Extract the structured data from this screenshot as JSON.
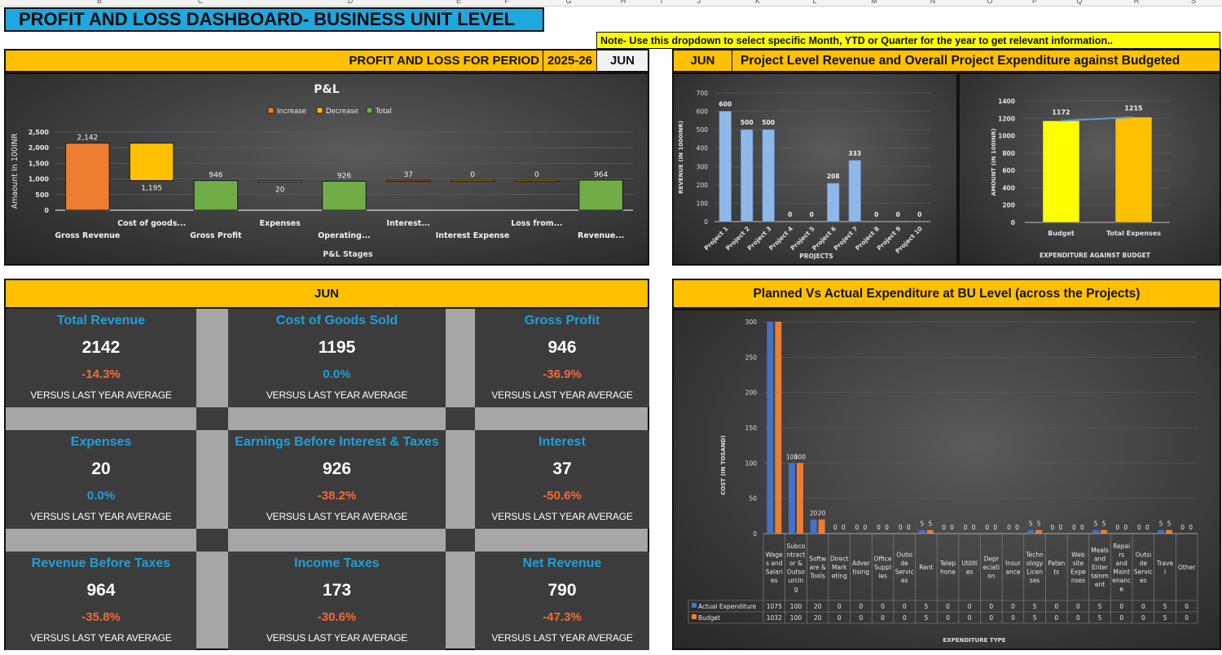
{
  "sheet_columns": [
    "B",
    "C",
    "D",
    "E",
    "F",
    "G",
    "H",
    "I",
    "J",
    "K",
    "L",
    "M",
    "N",
    "O",
    "P",
    "Q",
    "R",
    "S"
  ],
  "title": "PROFIT AND LOSS DASHBOARD- BUSINESS UNIT LEVEL",
  "note": "Note- Use this dropdown to select specific Month, YTD or Quarter for the year to get relevant information..",
  "pl_header": {
    "label": "PROFIT AND LOSS FOR PERIOD",
    "year": "2025-26",
    "month": "JUN"
  },
  "project_header": {
    "month": "JUN",
    "label": "Project Level Revenue and  Overall Project Expenditure against Budgeted"
  },
  "kpi_header": "JUN",
  "colors": {
    "increase": "#ed7d31",
    "decrease": "#ffc000",
    "total": "#70ad47",
    "negative_pct": "#f26b3a",
    "neutral_pct": "#1ea0d8",
    "kpi_title": "#1ea0d8",
    "blue_series": "#4472c4",
    "orange_series": "#ed7d31"
  },
  "kpis": [
    {
      "title": "Total Revenue",
      "value": "2142",
      "pct": "-14.3%",
      "trend": "negative",
      "sub": "VERSUS LAST YEAR AVERAGE"
    },
    {
      "title": "Cost of Goods Sold",
      "value": "1195",
      "pct": "0.0%",
      "trend": "neutral",
      "sub": "VERSUS LAST YEAR AVERAGE"
    },
    {
      "title": "Gross Profit",
      "value": "946",
      "pct": "-36.9%",
      "trend": "negative",
      "sub": "VERSUS LAST YEAR AVERAGE"
    },
    {
      "title": "Expenses",
      "value": "20",
      "pct": "0.0%",
      "trend": "neutral",
      "sub": "VERSUS LAST YEAR AVERAGE"
    },
    {
      "title": "Earnings Before Interest & Taxes",
      "value": "926",
      "pct": "-38.2%",
      "trend": "negative",
      "sub": "VERSUS LAST YEAR AVERAGE"
    },
    {
      "title": "Interest",
      "value": "37",
      "pct": "-50.6%",
      "trend": "negative",
      "sub": "VERSUS LAST YEAR AVERAGE"
    },
    {
      "title": "Revenue Before Taxes",
      "value": "964",
      "pct": "-35.8%",
      "trend": "negative",
      "sub": "VERSUS LAST YEAR AVERAGE"
    },
    {
      "title": "Income Taxes",
      "value": "173",
      "pct": "-30.6%",
      "trend": "negative",
      "sub": "VERSUS LAST YEAR AVERAGE"
    },
    {
      "title": "Net Revenue",
      "value": "790",
      "pct": "-47.3%",
      "trend": "negative",
      "sub": "VERSUS LAST YEAR AVERAGE"
    }
  ],
  "chart_data": [
    {
      "id": "pl",
      "type": "bar",
      "subtype": "waterfall",
      "title": "P&L",
      "xlabel": "P&L Stages",
      "ylabel": "Amaount In 100INR",
      "ylim": [
        0,
        2500
      ],
      "yticks": [
        "0",
        "500",
        "1,000",
        "1,500",
        "2,000",
        "2,500"
      ],
      "yticks_values": [
        0,
        500,
        1000,
        1500,
        2000,
        2500
      ],
      "legend": [
        "Increase",
        "Decrease",
        "Total"
      ],
      "legend_position": "top",
      "grid": true,
      "categories": [
        "Gross Revenue",
        "Cost of goods...",
        "Gross Profit",
        "Expenses",
        "Operating...",
        "Interest...",
        "Interest Expense",
        "Loss from...",
        "Revenue..."
      ],
      "points": [
        {
          "label": "2,142",
          "kind": "increase",
          "low": 0,
          "high": 2142
        },
        {
          "label": "1,195",
          "kind": "decrease",
          "low": 947,
          "high": 2142
        },
        {
          "label": "946",
          "kind": "total",
          "low": 0,
          "high": 946
        },
        {
          "label": "20",
          "kind": "decrease",
          "low": 926,
          "high": 946
        },
        {
          "label": "926",
          "kind": "total",
          "low": 0,
          "high": 926
        },
        {
          "label": "37",
          "kind": "increase",
          "low": 926,
          "high": 963
        },
        {
          "label": "0",
          "kind": "decrease",
          "low": 963,
          "high": 963
        },
        {
          "label": "0",
          "kind": "decrease",
          "low": 963,
          "high": 963
        },
        {
          "label": "964",
          "kind": "total",
          "low": 0,
          "high": 964
        }
      ]
    },
    {
      "id": "projects",
      "type": "bar",
      "title": "",
      "xlabel": "PROJECTS",
      "ylabel": "REVENUE (IN 1000INR)",
      "ylim": [
        0,
        700
      ],
      "yticks_values": [
        0,
        100,
        200,
        300,
        400,
        500,
        600,
        700
      ],
      "grid": true,
      "categories": [
        "Project 1",
        "Project 2",
        "Project 3",
        "Project 4",
        "Project 5",
        "Project 6",
        "Project 7",
        "Project 8",
        "Project 9",
        "Project 10"
      ],
      "values": [
        600,
        500,
        500,
        0,
        0,
        208,
        333,
        0,
        0,
        0
      ]
    },
    {
      "id": "budget",
      "type": "bar",
      "title": "",
      "xlabel": "EXPENDITURE AGAINST BUDGET",
      "ylabel": "AMOUNT (IN 100INR)",
      "ylim": [
        0,
        1400
      ],
      "yticks_values": [
        0,
        200,
        400,
        600,
        800,
        1000,
        1200,
        1400
      ],
      "grid": true,
      "categories": [
        "Budget",
        "Total Expenses"
      ],
      "values": [
        1172,
        1215
      ],
      "bar_colors": [
        "#ffff00",
        "#ffc000"
      ],
      "trendline": true
    },
    {
      "id": "expenditure",
      "type": "bar",
      "title": "",
      "xlabel": "EXPENDITURE TYPE",
      "ylabel": "COST (IN TOSAND)",
      "ylim": [
        0,
        300
      ],
      "yticks_values": [
        0,
        50,
        100,
        150,
        200,
        250,
        300
      ],
      "grid": true,
      "data_table": true,
      "categories": [
        "Wages and Salaries",
        "Subcontractor & Outsourcing",
        "Software & Tools",
        "Direct Marketing",
        "Advertising",
        "Office Supplies",
        "Outside Services",
        "Rent",
        "Telephone",
        "Utilities",
        "Depreciation",
        "Insurance",
        "Technology Licenses",
        "Patents",
        "Website Expenses",
        "Meals and Entertainment",
        "Repairs and Maintenance",
        "Outside Services",
        "Travel",
        "Other"
      ],
      "category_display": [
        "Wage|s and|Salari|es",
        "Subco|ntract|or &|Outso|urcin|g",
        "Softw|are &|Tools",
        "Direct|Mark|eting",
        "Adver|tising",
        "Office|Suppl|ies",
        "Outsi|de|Servic|es",
        "Rent",
        "Telep|hone",
        "Utiliti|es",
        "Depr|eciati|on",
        "Insur|ance",
        "Techn|ology|Licen|ses",
        "Paten|ts",
        "Web|site|Expe|nses",
        "Meals|and|Enter|tainm|ent",
        "Repai|rs|and|Maint|enanc|e",
        "Outsi|de|Servic|es",
        "Trave|l",
        "Other"
      ],
      "series": [
        {
          "name": "Actual Expenditure",
          "values": [
            1075,
            100,
            20,
            0,
            0,
            0,
            0,
            5,
            0,
            0,
            0,
            0,
            5,
            0,
            0,
            5,
            0,
            0,
            5,
            0
          ]
        },
        {
          "name": "Budget",
          "values": [
            1032,
            100,
            20,
            0,
            0,
            0,
            0,
            5,
            0,
            0,
            0,
            0,
            5,
            0,
            0,
            5,
            0,
            0,
            5,
            0
          ]
        }
      ]
    }
  ]
}
